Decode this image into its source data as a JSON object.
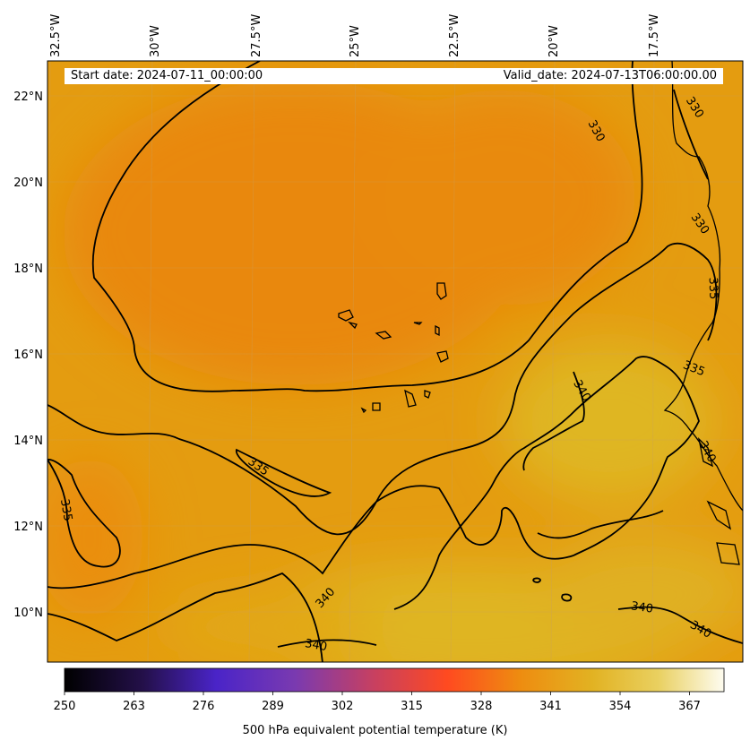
{
  "header": {
    "start_date": "Start date: 2024-07-11_00:00:00",
    "valid_date": "Valid_date: 2024-07-13T06:00:00.00"
  },
  "map": {
    "lon_ticks": [
      "32.5°W",
      "30°W",
      "27.5°W",
      "25°W",
      "22.5°W",
      "20°W",
      "17.5°W"
    ],
    "lat_ticks": [
      "22°N",
      "20°N",
      "18°N",
      "16°N",
      "14°N",
      "12°N",
      "10°N"
    ],
    "contour_labels": [
      "330",
      "330",
      "330",
      "335",
      "335",
      "335",
      "335",
      "340",
      "340",
      "340",
      "340",
      "340",
      "340"
    ],
    "field_colors": {
      "cool": "#e98a08",
      "mid": "#e49b10",
      "warm": "#dfb521"
    }
  },
  "colorbar": {
    "ticks": [
      "250",
      "263",
      "276",
      "289",
      "302",
      "315",
      "328",
      "341",
      "354",
      "367"
    ],
    "label": "500 hPa equivalent potential temperature (K)",
    "stops": [
      "#000000",
      "#2a1250",
      "#4a24c8",
      "#7a3ab0",
      "#c84060",
      "#ff4a20",
      "#f08a10",
      "#e6a818",
      "#e8d050",
      "#fefcf0"
    ]
  }
}
